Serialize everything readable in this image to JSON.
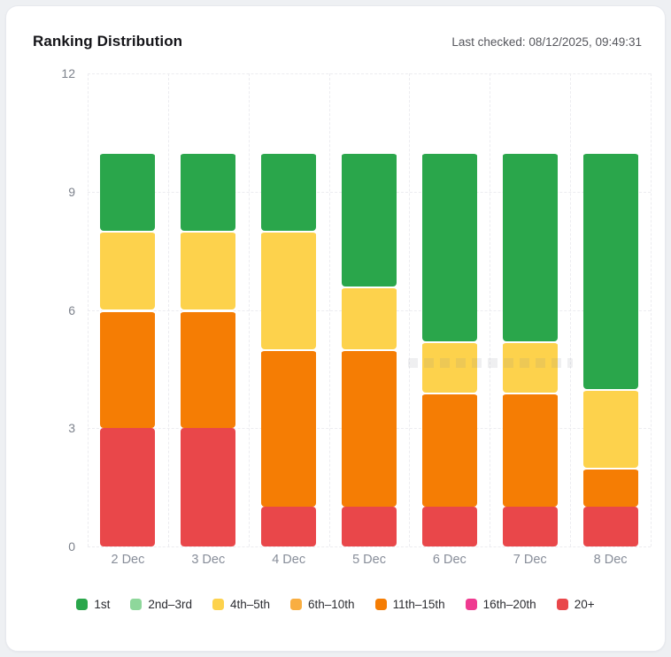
{
  "header": {
    "title": "Ranking Distribution",
    "last_checked": "Last checked: 08/12/2025, 09:49:31"
  },
  "chart_data": {
    "type": "bar",
    "stacked": true,
    "title": "Ranking Distribution",
    "xlabel": "",
    "ylabel": "",
    "ylim": [
      0,
      12
    ],
    "yticks": [
      0,
      3,
      6,
      9,
      12
    ],
    "grid": "dashed, horizontal and vertical, light gray",
    "legend_position": "bottom-center",
    "categories": [
      "2 Dec",
      "3 Dec",
      "4 Dec",
      "5 Dec",
      "6 Dec",
      "7 Dec",
      "8 Dec"
    ],
    "series_bottom_to_top": [
      {
        "name": "20+",
        "color": "#e9474a",
        "values": [
          3,
          3,
          1,
          1,
          1,
          1,
          1
        ]
      },
      {
        "name": "16th–20th",
        "color": "#ef3a90",
        "values": [
          0,
          0,
          0,
          0,
          0,
          0,
          0
        ]
      },
      {
        "name": "11th–15th",
        "color": "#f57d04",
        "values": [
          3,
          3,
          4,
          4,
          2.9,
          2.9,
          1
        ]
      },
      {
        "name": "6th–10th",
        "color": "#f9ae41",
        "values": [
          0,
          0,
          0,
          0,
          0,
          0,
          0
        ]
      },
      {
        "name": "4th–5th",
        "color": "#fdd24c",
        "values": [
          2,
          2,
          3,
          1.6,
          1.3,
          1.3,
          2
        ]
      },
      {
        "name": "2nd–3rd",
        "color": "#8ed79b",
        "values": [
          0,
          0,
          0,
          0,
          0,
          0,
          0
        ]
      },
      {
        "name": "1st",
        "color": "#2aa64b",
        "values": [
          2,
          2,
          2,
          3.4,
          4.8,
          4.8,
          6
        ]
      }
    ],
    "bar_totals": [
      10,
      10,
      10,
      10,
      10,
      10,
      10
    ]
  },
  "legend": [
    {
      "label": "1st",
      "color": "#2aa64b"
    },
    {
      "label": "2nd–3rd",
      "color": "#8ed79b"
    },
    {
      "label": "4th–5th",
      "color": "#fdd24c"
    },
    {
      "label": "6th–10th",
      "color": "#f9ae41"
    },
    {
      "label": "11th–15th",
      "color": "#f57d04"
    },
    {
      "label": "16th–20th",
      "color": "#ef3a90"
    },
    {
      "label": "20+",
      "color": "#e9474a"
    }
  ]
}
